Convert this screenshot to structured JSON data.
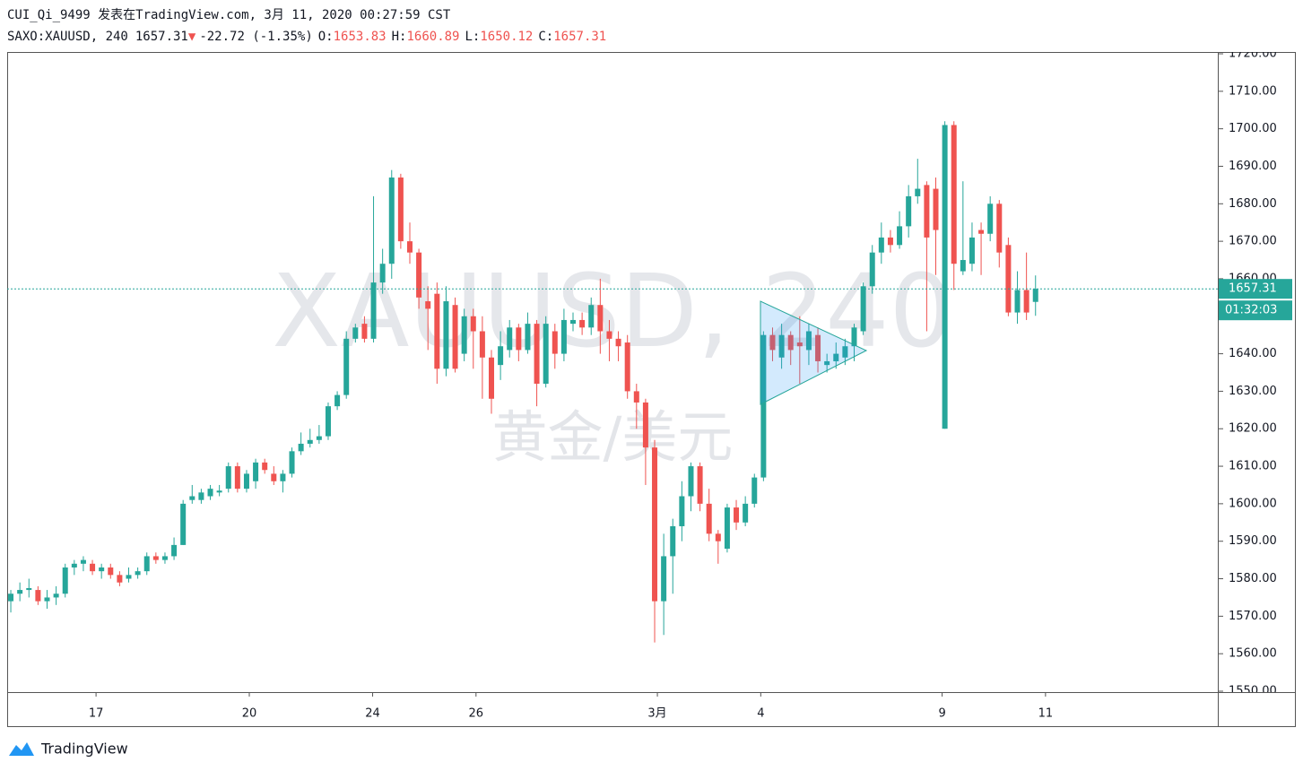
{
  "header": {
    "author_line": "CUI_Qi_9499 发表在TradingView.com, 3月 11, 2020 00:27:59 CST",
    "symbol": "SAXO:XAUUSD, 240",
    "last": "1657.31",
    "arrow": "▼",
    "change": "-22.72 (-1.35%)",
    "ohlc": [
      {
        "label": "O:",
        "value": "1653.83"
      },
      {
        "label": "H:",
        "value": "1660.89"
      },
      {
        "label": "L:",
        "value": "1650.12"
      },
      {
        "label": "C:",
        "value": "1657.31"
      }
    ]
  },
  "watermark": {
    "symbol": "XAUUSD, 240",
    "name": "黄金/美元"
  },
  "footer": {
    "logo": "TradingView"
  },
  "chart_data": {
    "type": "candlestick",
    "up_color": "#26a69a",
    "down_color": "#ef5350",
    "x": [
      0,
      1,
      2,
      3,
      4,
      5,
      6,
      7,
      8,
      9,
      10,
      11,
      12,
      13,
      14,
      15,
      16,
      17,
      18,
      19,
      20,
      21,
      22,
      23,
      24,
      25,
      26,
      27,
      28,
      29,
      30,
      31,
      32,
      33,
      34,
      35,
      36,
      37,
      38,
      39,
      40,
      41,
      42,
      43,
      44,
      45,
      46,
      47,
      48,
      49,
      50,
      51,
      52,
      53,
      54,
      55,
      56,
      57,
      58,
      59,
      60,
      61,
      62,
      63,
      64,
      65,
      66,
      67,
      68,
      69,
      70,
      71,
      72,
      73,
      74,
      75,
      76,
      77,
      78,
      79,
      80,
      81,
      82,
      83,
      84,
      85,
      86,
      87,
      88,
      89,
      90,
      91,
      92,
      93,
      94,
      95,
      96,
      97,
      98,
      99,
      100,
      101,
      102,
      103,
      104,
      105,
      106,
      107,
      108,
      109,
      110,
      111,
      112,
      113
    ],
    "open": [
      1574,
      1576,
      1577,
      1577,
      1574,
      1575,
      1576,
      1583,
      1584,
      1584,
      1582,
      1583,
      1581,
      1580,
      1581,
      1582,
      1586,
      1585,
      1586,
      1589,
      1601,
      1601,
      1602,
      1603,
      1604,
      1610,
      1604,
      1606,
      1611,
      1608,
      1606,
      1608,
      1614,
      1616,
      1617,
      1618,
      1626,
      1629,
      1644,
      1648,
      1644,
      1659,
      1664,
      1687,
      1670,
      1667,
      1654,
      1656,
      1636,
      1653,
      1640,
      1650,
      1646,
      1639,
      1637,
      1641,
      1647,
      1641,
      1648,
      1632,
      1646,
      1640,
      1648,
      1649,
      1647,
      1653,
      1646,
      1644,
      1643,
      1630,
      1627,
      1615,
      1574,
      1586,
      1594,
      1602,
      1610,
      1600,
      1592,
      1588,
      1599,
      1595,
      1600,
      1607,
      1645,
      1639,
      1645,
      1643,
      1641,
      1645,
      1637,
      1638,
      1639,
      1642,
      1646,
      1658,
      1667,
      1671,
      1669,
      1674,
      1682,
      1685,
      1684,
      1620,
      1701,
      1662,
      1664,
      1673,
      1672,
      1680,
      1669,
      1651,
      1657,
      1653.83
    ],
    "high": [
      1577,
      1579,
      1580,
      1578,
      1577,
      1578,
      1584,
      1585,
      1586,
      1585,
      1584,
      1584,
      1582,
      1583,
      1583,
      1587,
      1587,
      1587,
      1591,
      1601,
      1605,
      1604,
      1605,
      1605,
      1611,
      1611,
      1609,
      1612,
      1612,
      1610,
      1609,
      1615,
      1619,
      1620,
      1621,
      1627,
      1630,
      1646,
      1648,
      1650,
      1682,
      1668,
      1689,
      1688,
      1675,
      1668,
      1658,
      1659,
      1658,
      1655,
      1652,
      1652,
      1650,
      1641,
      1646,
      1649,
      1648,
      1651,
      1649,
      1650,
      1648,
      1652,
      1651,
      1651,
      1655,
      1660,
      1649,
      1646,
      1645,
      1632,
      1628,
      1617,
      1592,
      1596,
      1606,
      1611,
      1611,
      1604,
      1593,
      1600,
      1601,
      1602,
      1608,
      1646,
      1647,
      1648,
      1646,
      1650,
      1648,
      1647,
      1640,
      1643,
      1644,
      1648,
      1659,
      1669,
      1675,
      1673,
      1678,
      1685,
      1692,
      1686,
      1687,
      1702,
      1702,
      1686,
      1675,
      1675,
      1682,
      1681,
      1671,
      1662,
      1667,
      1660.89
    ],
    "low": [
      1571,
      1574,
      1575,
      1573,
      1572,
      1573,
      1575,
      1581,
      1582,
      1581,
      1580,
      1580,
      1578,
      1579,
      1580,
      1581,
      1584,
      1584,
      1585,
      1589,
      1600,
      1600,
      1601,
      1602,
      1603,
      1603,
      1603,
      1604,
      1608,
      1605,
      1603,
      1607,
      1613,
      1615,
      1616,
      1617,
      1625,
      1628,
      1643,
      1643,
      1643,
      1656,
      1660,
      1668,
      1664,
      1652,
      1641,
      1632,
      1634,
      1635,
      1638,
      1636,
      1628,
      1624,
      1633,
      1639,
      1638,
      1640,
      1626,
      1631,
      1636,
      1638,
      1646,
      1645,
      1645,
      1640,
      1638,
      1638,
      1628,
      1620,
      1605,
      1563,
      1565,
      1576,
      1590,
      1598,
      1598,
      1590,
      1584,
      1587,
      1593,
      1594,
      1599,
      1606,
      1638,
      1636,
      1637,
      1632,
      1637,
      1635,
      1635,
      1636,
      1637,
      1638,
      1645,
      1656,
      1664,
      1667,
      1668,
      1671,
      1680,
      1646,
      1661,
      1620,
      1657,
      1661,
      1662,
      1661,
      1670,
      1663,
      1650,
      1648,
      1649,
      1650.12
    ],
    "close": [
      1576,
      1577,
      1577.5,
      1574,
      1575,
      1576,
      1583,
      1584,
      1585,
      1582,
      1583,
      1581,
      1579,
      1581,
      1582,
      1586,
      1585,
      1586,
      1589,
      1600,
      1602,
      1603,
      1604,
      1603.5,
      1610,
      1604,
      1608,
      1611,
      1609,
      1606,
      1608,
      1614,
      1616,
      1617,
      1618,
      1626,
      1629,
      1644,
      1647,
      1644,
      1659,
      1664,
      1687,
      1670,
      1667,
      1655,
      1652,
      1636,
      1654,
      1636,
      1650,
      1646,
      1639,
      1628,
      1642,
      1647,
      1641,
      1648,
      1632,
      1648,
      1640,
      1649,
      1649,
      1647,
      1653,
      1646,
      1644,
      1642,
      1630,
      1627,
      1615,
      1574,
      1586,
      1594,
      1602,
      1610,
      1600,
      1592,
      1590,
      1599,
      1595,
      1600,
      1607,
      1645,
      1641,
      1645,
      1641,
      1642,
      1646,
      1638,
      1638,
      1640,
      1642,
      1647,
      1658,
      1667,
      1671,
      1669,
      1674,
      1682,
      1684,
      1671,
      1673,
      1701,
      1664,
      1665,
      1671,
      1672,
      1680,
      1667,
      1651,
      1657,
      1651,
      1657.31
    ],
    "xlim": [
      -0.4,
      133.1
    ],
    "xticks": [
      {
        "value": 9.4,
        "label": "17"
      },
      {
        "value": 26.3,
        "label": "20"
      },
      {
        "value": 39.9,
        "label": "24"
      },
      {
        "value": 51.3,
        "label": "26"
      },
      {
        "value": 71.3,
        "label": "3月"
      },
      {
        "value": 82.7,
        "label": "4"
      },
      {
        "value": 102.7,
        "label": "9"
      },
      {
        "value": 114.1,
        "label": "11"
      }
    ],
    "ylim": [
      1550,
      1720
    ],
    "yticks": [
      {
        "value": 1550,
        "label": "1550.00"
      },
      {
        "value": 1560,
        "label": "1560.00"
      },
      {
        "value": 1570,
        "label": "1570.00"
      },
      {
        "value": 1580,
        "label": "1580.00"
      },
      {
        "value": 1590,
        "label": "1590.00"
      },
      {
        "value": 1600,
        "label": "1600.00"
      },
      {
        "value": 1610,
        "label": "1610.00"
      },
      {
        "value": 1620,
        "label": "1620.00"
      },
      {
        "value": 1630,
        "label": "1630.00"
      },
      {
        "value": 1640,
        "label": "1640.00"
      },
      {
        "value": 1650,
        "label": "1650.00"
      },
      {
        "value": 1660,
        "label": "1660.00"
      },
      {
        "value": 1670,
        "label": "1670.00"
      },
      {
        "value": 1680,
        "label": "1680.00"
      },
      {
        "value": 1690,
        "label": "1690.00"
      },
      {
        "value": 1700,
        "label": "1700.00"
      },
      {
        "value": 1710,
        "label": "1710.00"
      },
      {
        "value": 1720,
        "label": "1720.00"
      }
    ],
    "last_price": 1657.31,
    "last_price_color": "#26a69a",
    "countdown": "01:32:03"
  }
}
